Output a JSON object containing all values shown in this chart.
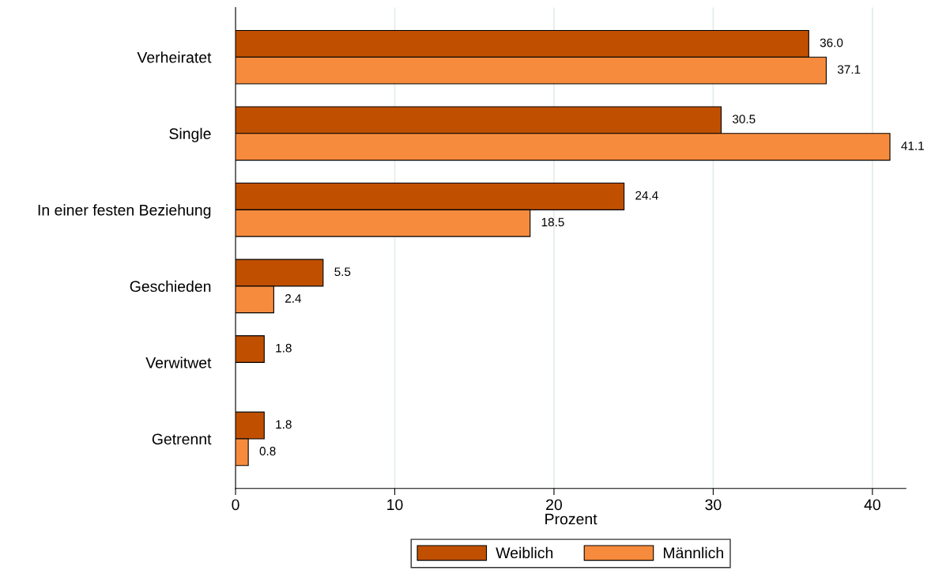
{
  "chart_data": {
    "type": "bar",
    "orientation": "horizontal",
    "xlabel": "Prozent",
    "categories": [
      "Verheiratet",
      "Single",
      "In einer festen Beziehung",
      "Geschieden",
      "Verwitwet",
      "Getrennt"
    ],
    "series": [
      {
        "name": "Weiblich",
        "color": "#c05000",
        "values": [
          36.0,
          30.5,
          24.4,
          5.5,
          1.8,
          1.8
        ],
        "value_labels": [
          "36.0",
          "30.5",
          "24.4",
          "5.5",
          "1.8",
          "1.8"
        ]
      },
      {
        "name": "Männlich",
        "color": "#f78b3d",
        "values": [
          37.1,
          41.1,
          18.5,
          2.4,
          null,
          0.8
        ],
        "value_labels": [
          "37.1",
          "41.1",
          "18.5",
          "2.4",
          null,
          "0.8"
        ]
      }
    ],
    "xlim": [
      0,
      42.1
    ],
    "xticks": [
      0,
      10,
      20,
      30,
      40
    ],
    "grid": "x",
    "legend": "bottom"
  }
}
